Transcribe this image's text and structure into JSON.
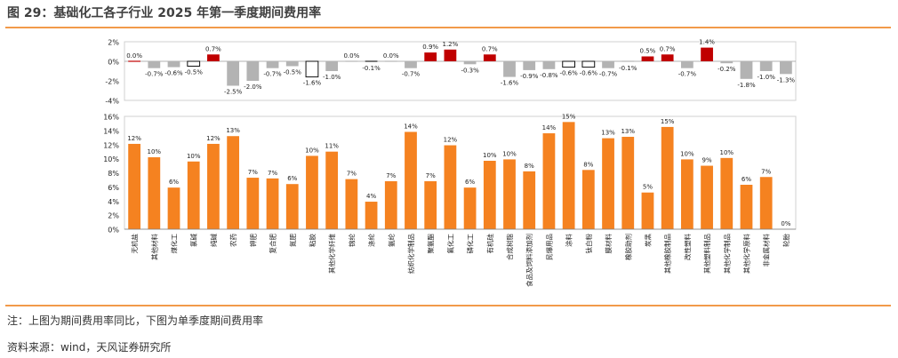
{
  "title": "图 29：基础化工各子行业 2025 年第一季度期间费用率",
  "note": "注：上图为期间费用率同比，下图为单季度期间费用率",
  "source": "资料来源：wind，天风证券研究所",
  "colors": {
    "orange": "#f58220",
    "red": "#c00000",
    "gray": "#b3b3b3",
    "rule": "#f29a4a"
  },
  "chart_data": [
    {
      "type": "bar",
      "title": "上图为期间费用率同比",
      "ylim": [
        -4,
        2
      ],
      "yticks": [
        "2%",
        "0%",
        "-2%",
        "-4%"
      ],
      "categories": [
        "无机盐",
        "其他材料",
        "煤化工",
        "氯碱",
        "纯碱",
        "农药",
        "钾肥",
        "复合肥",
        "氮肥",
        "粘胶",
        "其他化学纤维",
        "锦纶",
        "涤纶",
        "氨纶",
        "纺织化学制品",
        "聚氨酯",
        "氟化工",
        "磷化工",
        "有机硅",
        "合成树脂",
        "食品及饲料添加剂",
        "民爆用品",
        "涂料",
        "钛白粉",
        "膜材料",
        "橡胶助剂",
        "炭黑",
        "其他橡胶制品",
        "改性塑料",
        "其他塑料制品",
        "其他化学制品",
        "其他化学原料",
        "非金属材料",
        "轮胎"
      ],
      "values": [
        0.0,
        -0.7,
        -0.6,
        -0.5,
        0.7,
        -2.5,
        -2.0,
        -0.7,
        -0.5,
        -1.6,
        -1.0,
        0.0,
        -0.1,
        0.0,
        -0.7,
        0.9,
        1.2,
        -0.3,
        0.7,
        -1.6,
        -0.9,
        -0.8,
        -0.6,
        -0.6,
        -0.7,
        -0.1,
        0.5,
        0.7,
        -0.7,
        1.4,
        -0.2,
        -1.8,
        -1.0,
        -1.3
      ],
      "labels": [
        "0.0%",
        "-0.7%",
        "-0.6%",
        "-0.5%",
        "0.7%",
        "-2.5%",
        "-2.0%",
        "-0.7%",
        "-0.5%",
        "-1.6%",
        "-1.0%",
        "0.0%",
        "-0.1%",
        "0.0%",
        "-0.7%",
        "0.9%",
        "1.2%",
        "-0.3%",
        "0.7%",
        "-1.6%",
        "-0.9%",
        "-0.8%",
        "-0.6%",
        "-0.6%",
        "-0.7%",
        "-0.1%",
        "0.5%",
        "0.7%",
        "-0.7%",
        "1.4%",
        "-0.2%",
        "-1.8%",
        "-1.0%",
        "-1.3%"
      ],
      "styles": [
        "red",
        "gray",
        "gray",
        "outline",
        "red",
        "gray",
        "gray",
        "gray",
        "gray",
        "outline",
        "gray",
        "gray",
        "dark",
        "gray",
        "gray",
        "red",
        "red",
        "gray",
        "red",
        "gray",
        "gray",
        "gray",
        "outline",
        "outline",
        "gray",
        "gray",
        "red",
        "red",
        "gray",
        "red",
        "gray",
        "gray",
        "gray",
        "gray"
      ]
    },
    {
      "type": "bar",
      "title": "下图为单季度期间费用率",
      "ylim": [
        0,
        16
      ],
      "yticks": [
        "16%",
        "14%",
        "12%",
        "10%",
        "8%",
        "6%",
        "4%",
        "2%",
        "0%"
      ],
      "categories": [
        "无机盐",
        "其他材料",
        "煤化工",
        "氯碱",
        "纯碱",
        "农药",
        "钾肥",
        "复合肥",
        "氮肥",
        "粘胶",
        "其他化学纤维",
        "锦纶",
        "涤纶",
        "氨纶",
        "纺织化学制品",
        "聚氨酯",
        "氟化工",
        "磷化工",
        "有机硅",
        "合成树脂",
        "食品及饲料添加剂",
        "民爆用品",
        "涂料",
        "钛白粉",
        "膜材料",
        "橡胶助剂",
        "炭黑",
        "其他橡胶制品",
        "改性塑料",
        "其他塑料制品",
        "其他化学制品",
        "其他化学原料",
        "非金属材料",
        "轮胎"
      ],
      "values": [
        12.1,
        10.2,
        5.9,
        9.6,
        12.1,
        13.2,
        7.3,
        7.2,
        6.4,
        10.4,
        11.0,
        7.1,
        3.9,
        6.8,
        13.8,
        6.8,
        11.9,
        5.9,
        9.7,
        9.9,
        8.2,
        13.6,
        15.2,
        8.4,
        12.9,
        13.1,
        5.2,
        14.5,
        9.9,
        9.0,
        10.1,
        6.3,
        7.4,
        0.0
      ],
      "labels": [
        "12%",
        "10%",
        "6%",
        "10%",
        "12%",
        "13%",
        "7%",
        "7%",
        "6%",
        "10%",
        "11%",
        "7%",
        "4%",
        "7%",
        "14%",
        "7%",
        "12%",
        "6%",
        "10%",
        "10%",
        "8%",
        "14%",
        "15%",
        "8%",
        "13%",
        "13%",
        "5%",
        "15%",
        "10%",
        "9%",
        "10%",
        "6%",
        "7%",
        "0%"
      ]
    }
  ]
}
